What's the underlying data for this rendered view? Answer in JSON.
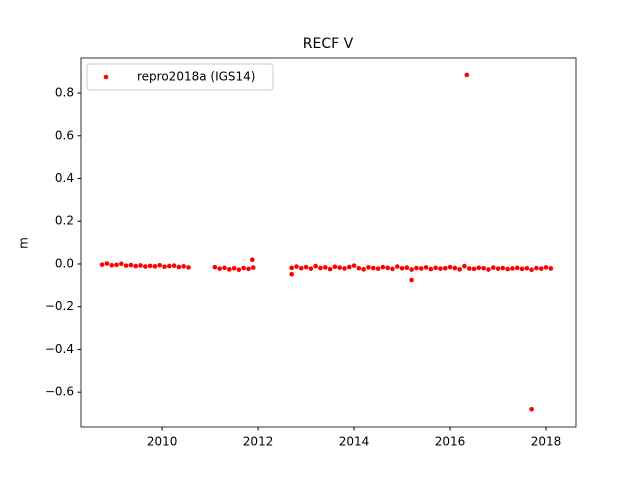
{
  "chart_data": {
    "type": "scatter",
    "title": "RECF V",
    "ylabel": "m",
    "x": [
      2008.75,
      2008.85,
      2008.95,
      2009.05,
      2009.15,
      2009.25,
      2009.35,
      2009.45,
      2009.55,
      2009.65,
      2009.75,
      2009.85,
      2009.95,
      2010.05,
      2010.15,
      2010.25,
      2010.35,
      2010.45,
      2010.55,
      2011.1,
      2011.2,
      2011.3,
      2011.4,
      2011.5,
      2011.6,
      2011.7,
      2011.8,
      2011.9,
      2011.88,
      2012.7,
      2012.8,
      2012.9,
      2013.0,
      2013.1,
      2013.2,
      2013.3,
      2013.4,
      2013.5,
      2013.6,
      2013.7,
      2013.8,
      2013.9,
      2014.0,
      2014.1,
      2014.2,
      2014.3,
      2014.4,
      2014.5,
      2014.6,
      2014.7,
      2014.8,
      2014.9,
      2015.0,
      2015.1,
      2015.2,
      2015.3,
      2015.4,
      2015.5,
      2015.6,
      2015.7,
      2015.8,
      2015.9,
      2016.0,
      2016.1,
      2016.2,
      2016.3,
      2016.4,
      2016.5,
      2016.6,
      2016.7,
      2016.8,
      2016.9,
      2017.0,
      2017.1,
      2017.2,
      2017.3,
      2017.4,
      2017.5,
      2017.6,
      2017.7,
      2017.8,
      2017.9,
      2018.0,
      2018.1,
      2012.7,
      2015.2,
      2016.35,
      2017.7
    ],
    "series": [
      {
        "name": "repro2018a (IGS14)",
        "color": "#ff0000",
        "values": [
          -0.003,
          0.002,
          -0.006,
          -0.004,
          0.001,
          -0.008,
          -0.005,
          -0.01,
          -0.007,
          -0.012,
          -0.009,
          -0.011,
          -0.006,
          -0.013,
          -0.01,
          -0.008,
          -0.014,
          -0.011,
          -0.016,
          -0.015,
          -0.022,
          -0.018,
          -0.025,
          -0.02,
          -0.027,
          -0.019,
          -0.023,
          -0.017,
          0.02,
          -0.018,
          -0.012,
          -0.02,
          -0.015,
          -0.022,
          -0.01,
          -0.019,
          -0.016,
          -0.024,
          -0.013,
          -0.017,
          -0.021,
          -0.014,
          -0.008,
          -0.02,
          -0.025,
          -0.016,
          -0.019,
          -0.022,
          -0.015,
          -0.018,
          -0.023,
          -0.012,
          -0.02,
          -0.017,
          -0.026,
          -0.019,
          -0.021,
          -0.016,
          -0.024,
          -0.018,
          -0.022,
          -0.02,
          -0.015,
          -0.019,
          -0.025,
          -0.01,
          -0.021,
          -0.023,
          -0.018,
          -0.02,
          -0.026,
          -0.017,
          -0.022,
          -0.019,
          -0.024,
          -0.021,
          -0.018,
          -0.023,
          -0.02,
          -0.027,
          -0.019,
          -0.022,
          -0.016,
          -0.021,
          -0.048,
          -0.075,
          0.885,
          -0.68
        ]
      }
    ],
    "xlim": [
      2008.31,
      2018.625
    ],
    "ylim": [
      -0.763,
      0.964
    ],
    "xticks": [
      2010,
      2012,
      2014,
      2016,
      2018
    ],
    "yticks": [
      {
        "value": -0.6,
        "label": "−0.6"
      },
      {
        "value": -0.4,
        "label": "−0.4"
      },
      {
        "value": -0.2,
        "label": "−0.2"
      },
      {
        "value": 0,
        "label": "0.0"
      },
      0.2,
      0.4,
      0.6,
      0.8
    ],
    "legend": "upper left"
  }
}
